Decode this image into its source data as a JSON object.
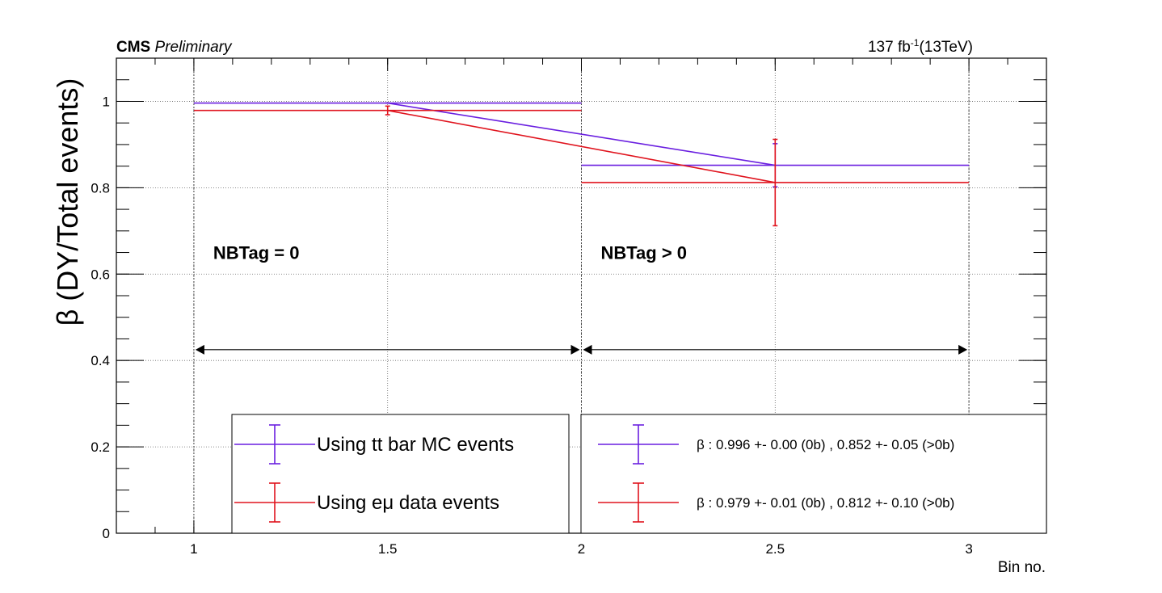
{
  "chart_data": {
    "type": "line",
    "header_left_bold": "CMS",
    "header_left_italic": "Preliminary",
    "header_right_pre": "137 fb",
    "header_right_sup": "-1",
    "header_right_post": "(13TeV)",
    "xlabel": "Bin no.",
    "ylabel": "β (DY/Total events)",
    "xlim": [
      0.8,
      3.2
    ],
    "ylim": [
      0,
      1.1
    ],
    "xticks": [
      "1",
      "1.5",
      "2",
      "2.5",
      "3"
    ],
    "yticks": [
      "0",
      "0.2",
      "0.4",
      "0.6",
      "0.8",
      "1"
    ],
    "grid": true,
    "annotations": [
      {
        "text": "NBTag = 0",
        "x": 1.05,
        "y": 0.65
      },
      {
        "text": "NBTag > 0",
        "x": 2.05,
        "y": 0.65
      }
    ],
    "series": [
      {
        "color": "#6a1fe0",
        "bins": [
          {
            "x": 1.5,
            "xlow": 1,
            "xhigh": 2,
            "y": 0.996,
            "err": 0.0
          },
          {
            "x": 2.5,
            "xlow": 2,
            "xhigh": 3,
            "y": 0.852,
            "err": 0.05
          }
        ]
      },
      {
        "color": "#e0141e",
        "bins": [
          {
            "x": 1.5,
            "xlow": 1,
            "xhigh": 2,
            "y": 0.979,
            "err": 0.01
          },
          {
            "x": 2.5,
            "xlow": 2,
            "xhigh": 3,
            "y": 0.812,
            "err": 0.1
          }
        ]
      }
    ],
    "legend_left": [
      "Using tt bar MC events",
      "Using eμ data events"
    ],
    "legend_right": [
      "β : 0.996 +- 0.00 (0b) , 0.852 +- 0.05 (>0b)",
      "β : 0.979 +- 0.01 (0b) , 0.812 +- 0.10 (>0b)"
    ],
    "legend_placement": "bottom"
  }
}
